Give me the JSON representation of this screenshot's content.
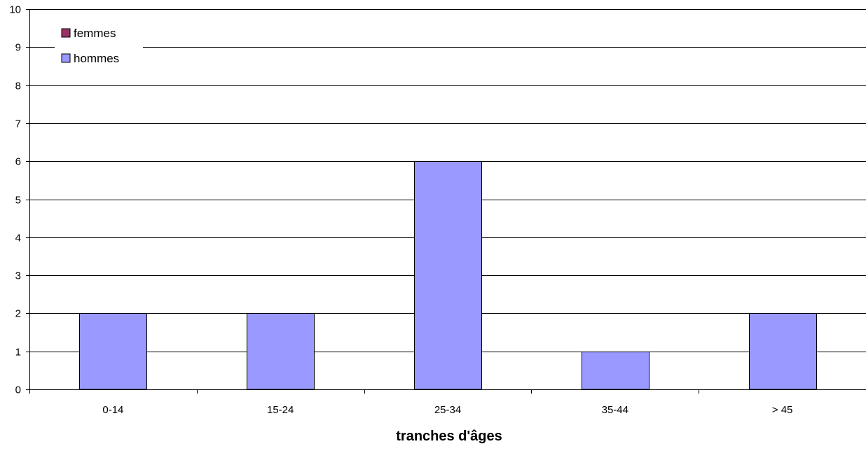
{
  "chart_data": {
    "type": "bar",
    "title": "",
    "xlabel": "tranches d'âges",
    "ylabel": "",
    "ylim": [
      0,
      10
    ],
    "yticks": [
      "0",
      "1",
      "2",
      "3",
      "4",
      "5",
      "6",
      "7",
      "8",
      "9",
      "10"
    ],
    "grid": true,
    "legend_position": "top-left",
    "categories": [
      "0-14",
      "15-24",
      "25-34",
      "35-44",
      "> 45"
    ],
    "series": [
      {
        "name": "femmes",
        "values": [
          0,
          0,
          0,
          0,
          0
        ],
        "color": "#993366"
      },
      {
        "name": "hommes",
        "values": [
          2,
          2,
          6,
          1,
          2
        ],
        "color": "#9999ff"
      }
    ]
  }
}
